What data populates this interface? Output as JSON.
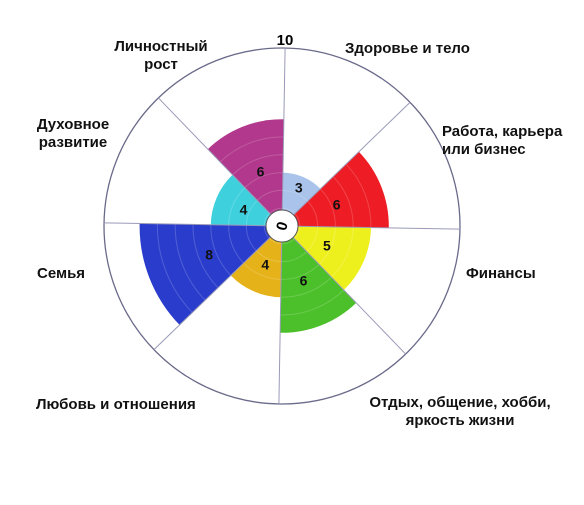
{
  "chart_data": {
    "type": "radial-bar",
    "title": "",
    "scale_max_label": "10",
    "center_label": "0",
    "rmax": 10,
    "categories": [
      {
        "label": "Здоровье и тело",
        "value": 3,
        "color": "#a9c3ea"
      },
      {
        "label": "Работа, карьера или бизнес",
        "value": 6,
        "color": "#ee1c24"
      },
      {
        "label": "Финансы",
        "value": 5,
        "color": "#eef01e"
      },
      {
        "label": "Отдых, общение, хобби, яркость жизни",
        "value": 6,
        "color": "#4cc02a"
      },
      {
        "label": "Любовь и отношения",
        "value": 4,
        "color": "#e6b21a"
      },
      {
        "label": "Семья",
        "value": 8,
        "color": "#2a3ccc"
      },
      {
        "label": "Духовное развитие",
        "value": 4,
        "color": "#3fd0de"
      },
      {
        "label": "Личностный рост",
        "value": 6,
        "color": "#b1388c"
      }
    ]
  }
}
